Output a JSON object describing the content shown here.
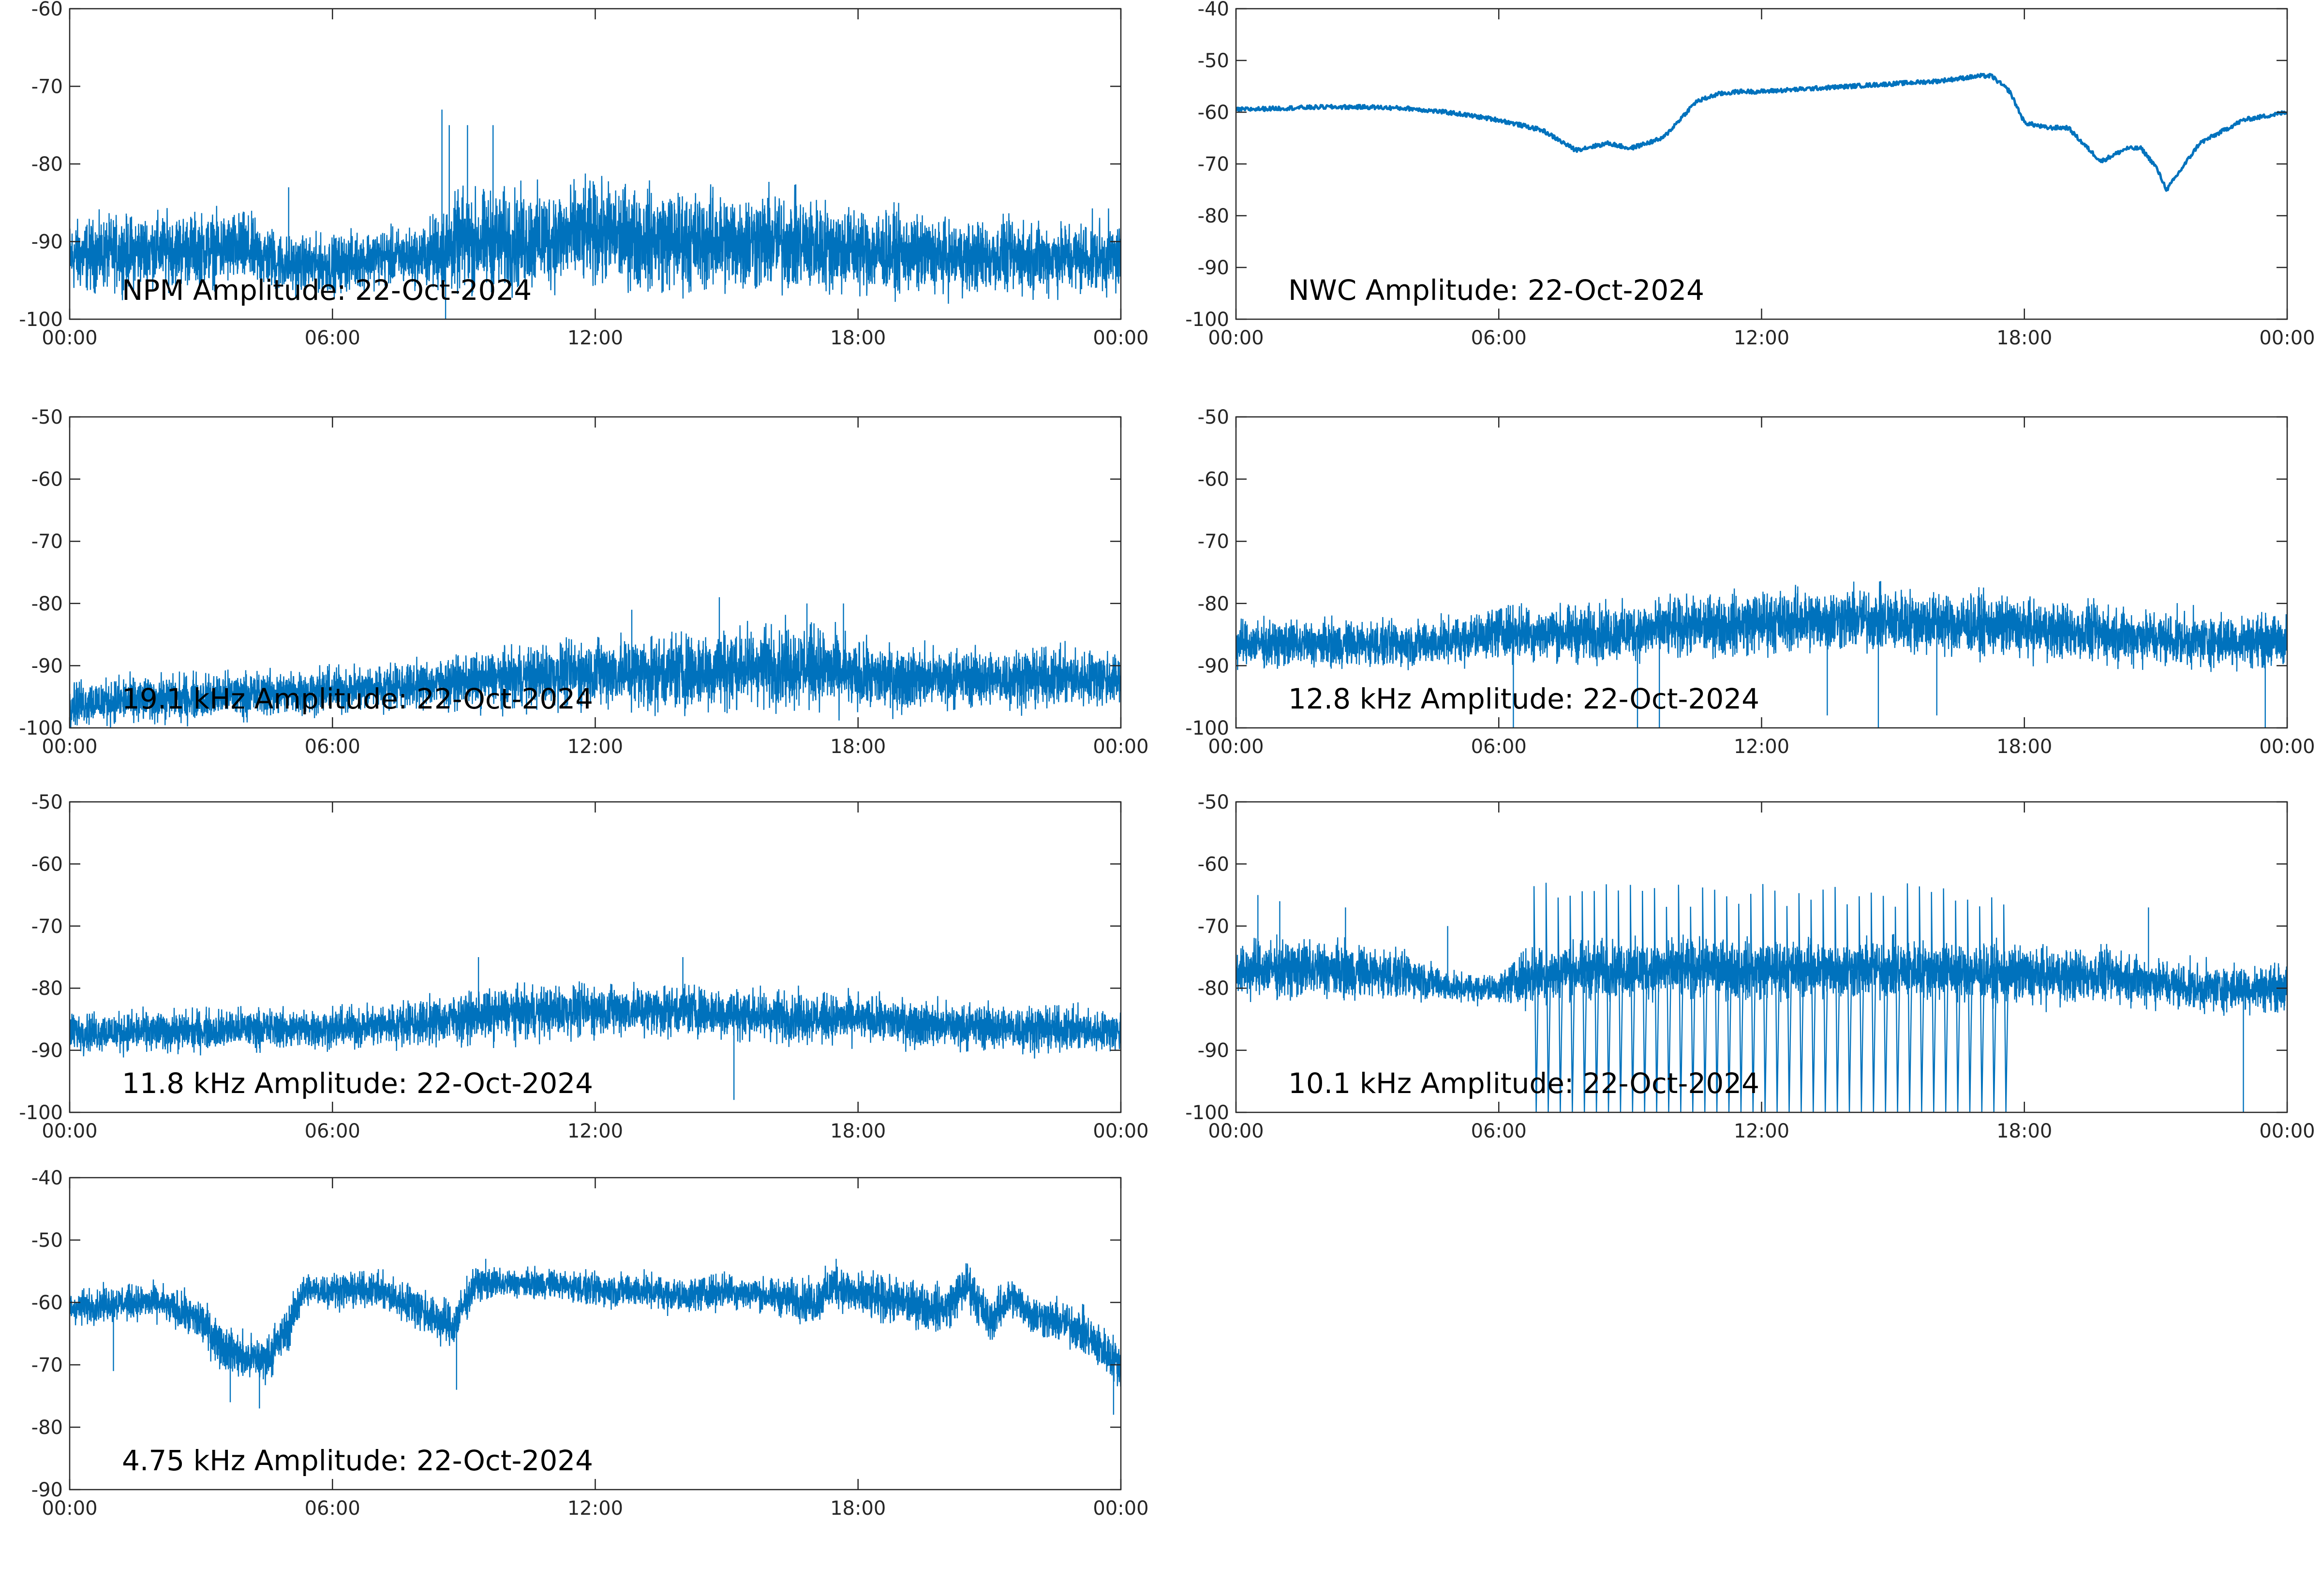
{
  "figure": {
    "line_color": "#0072BD",
    "frame_color": "#262626",
    "background": "#ffffff"
  },
  "chart_data": [
    {
      "type": "line",
      "title": "NPM Amplitude: 22-Oct-2024",
      "xlabel": "",
      "ylabel": "",
      "x_ticks": [
        "00:00",
        "06:00",
        "12:00",
        "18:00",
        "00:00"
      ],
      "y_ticks": [
        -60,
        -70,
        -80,
        -90,
        -100
      ],
      "ylim": [
        -100,
        -60
      ],
      "grid": false,
      "series": [
        {
          "profile": {
            "x": [
              "00:00",
              "02:00",
              "04:00",
              "05:00",
              "06:00",
              "07:00",
              "08:00",
              "08:30",
              "09:00",
              "10:00",
              "12:00",
              "14:00",
              "16:00",
              "18:00",
              "20:00",
              "22:00",
              "24:00"
            ],
            "center": [
              -92,
              -91,
              -91,
              -93,
              -93,
              -92,
              -92,
              -91,
              -90,
              -90,
              -89,
              -90,
              -90,
              -91,
              -92,
              -92,
              -92
            ],
            "spread": [
              5,
              5,
              5,
              4,
              4,
              4,
              4,
              6,
              7,
              7,
              7,
              7,
              7,
              6,
              5,
              5,
              5
            ]
          },
          "spikes": [
            {
              "x": "08:30",
              "y": -73
            },
            {
              "x": "08:40",
              "y": -75
            },
            {
              "x": "09:05",
              "y": -75
            },
            {
              "x": "09:40",
              "y": -75
            },
            {
              "x": "05:00",
              "y": -83
            },
            {
              "x": "08:35",
              "y": -100
            }
          ]
        }
      ]
    },
    {
      "type": "line",
      "title": "NWC Amplitude: 22-Oct-2024",
      "xlabel": "",
      "ylabel": "",
      "x_ticks": [
        "00:00",
        "06:00",
        "12:00",
        "18:00",
        "00:00"
      ],
      "y_ticks": [
        -40,
        -50,
        -60,
        -70,
        -80,
        -90,
        -100
      ],
      "ylim": [
        -100,
        -40
      ],
      "grid": false,
      "series": [
        {
          "profile": {
            "x": [
              "00:00",
              "02:00",
              "03:00",
              "04:00",
              "05:00",
              "06:00",
              "07:00",
              "07:45",
              "08:30",
              "09:00",
              "09:45",
              "10:30",
              "11:00",
              "11:30",
              "12:00",
              "13:00",
              "14:00",
              "15:00",
              "16:00",
              "17:00",
              "17:15",
              "17:40",
              "18:00",
              "18:30",
              "19:00",
              "19:20",
              "19:45",
              "20:20",
              "20:40",
              "21:00",
              "21:15",
              "22:00",
              "23:00",
              "24:00"
            ],
            "center": [
              -59.5,
              -59,
              -59,
              -59.3,
              -60.2,
              -61.5,
              -63.5,
              -67.3,
              -66,
              -67,
              -65,
              -58,
              -56.5,
              -56,
              -56,
              -55.5,
              -55,
              -54.5,
              -54,
              -53,
              -53,
              -56,
              -62,
              -63,
              -63,
              -66,
              -69.5,
              -67,
              -67,
              -70.5,
              -75,
              -66,
              -61.5,
              -60
            ]
          }
        }
      ]
    },
    {
      "type": "line",
      "title": "19.1 kHz Amplitude: 22-Oct-2024",
      "xlabel": "",
      "ylabel": "",
      "x_ticks": [
        "00:00",
        "06:00",
        "12:00",
        "18:00",
        "00:00"
      ],
      "y_ticks": [
        -50,
        -60,
        -70,
        -80,
        -90,
        -100
      ],
      "ylim": [
        -100,
        -50
      ],
      "grid": false,
      "series": [
        {
          "profile": {
            "x": [
              "00:00",
              "03:00",
              "06:00",
              "08:00",
              "10:00",
              "12:00",
              "14:00",
              "16:00",
              "17:00",
              "18:00",
              "20:00",
              "22:00",
              "24:00"
            ],
            "center": [
              -96,
              -95,
              -94,
              -93,
              -92,
              -91,
              -91,
              -90,
              -90,
              -92,
              -92,
              -92,
              -92
            ],
            "spread": [
              4,
              4,
              4,
              4,
              5,
              6,
              7,
              7,
              7,
              6,
              5,
              5,
              5
            ]
          },
          "spikes": [
            {
              "x": "12:50",
              "y": -81
            },
            {
              "x": "14:50",
              "y": -79
            },
            {
              "x": "16:50",
              "y": -80
            },
            {
              "x": "17:40",
              "y": -80
            }
          ]
        }
      ]
    },
    {
      "type": "line",
      "title": "12.8 kHz Amplitude: 22-Oct-2024",
      "xlabel": "",
      "ylabel": "",
      "x_ticks": [
        "00:00",
        "06:00",
        "12:00",
        "18:00",
        "00:00"
      ],
      "y_ticks": [
        -50,
        -60,
        -70,
        -80,
        -90,
        -100
      ],
      "ylim": [
        -100,
        -50
      ],
      "grid": false,
      "series": [
        {
          "profile": {
            "x": [
              "00:00",
              "02:00",
              "04:00",
              "05:00",
              "06:00",
              "08:00",
              "10:00",
              "12:00",
              "14:00",
              "16:00",
              "18:00",
              "20:00",
              "22:00",
              "24:00"
            ],
            "center": [
              -86.5,
              -86.5,
              -86.5,
              -86,
              -84.5,
              -85,
              -84,
              -83,
              -82.5,
              -83,
              -84,
              -85,
              -86,
              -86
            ],
            "spread": [
              4,
              4,
              4,
              4,
              4.5,
              5,
              5,
              5.5,
              5.5,
              5.5,
              5,
              5,
              4.5,
              4.5
            ]
          },
          "spikes": [
            {
              "x": "06:20",
              "y": -100
            },
            {
              "x": "09:10",
              "y": -100
            },
            {
              "x": "09:40",
              "y": -100
            },
            {
              "x": "13:30",
              "y": -98
            },
            {
              "x": "14:40",
              "y": -100
            },
            {
              "x": "16:00",
              "y": -98
            },
            {
              "x": "23:30",
              "y": -100
            }
          ]
        }
      ]
    },
    {
      "type": "line",
      "title": "11.8 kHz Amplitude: 22-Oct-2024",
      "xlabel": "",
      "ylabel": "",
      "x_ticks": [
        "00:00",
        "06:00",
        "12:00",
        "18:00",
        "00:00"
      ],
      "y_ticks": [
        -50,
        -60,
        -70,
        -80,
        -90,
        -100
      ],
      "ylim": [
        -100,
        -50
      ],
      "grid": false,
      "series": [
        {
          "profile": {
            "x": [
              "00:00",
              "02:00",
              "04:00",
              "06:00",
              "08:00",
              "10:00",
              "12:00",
              "14:00",
              "16:00",
              "18:00",
              "20:00",
              "22:00",
              "24:00"
            ],
            "center": [
              -87,
              -87,
              -86.5,
              -86.5,
              -85.5,
              -84,
              -83.5,
              -83.5,
              -84.5,
              -85,
              -86,
              -86.5,
              -87
            ],
            "spread": [
              3.5,
              3.5,
              3.5,
              3.5,
              4,
              4.5,
              4.5,
              4.5,
              4.5,
              4,
              4,
              4,
              3.5
            ]
          },
          "spikes": [
            {
              "x": "09:20",
              "y": -75
            },
            {
              "x": "14:00",
              "y": -75
            },
            {
              "x": "15:10",
              "y": -98
            }
          ]
        }
      ]
    },
    {
      "type": "line",
      "title": "10.1 kHz Amplitude: 22-Oct-2024",
      "xlabel": "",
      "ylabel": "",
      "x_ticks": [
        "00:00",
        "06:00",
        "12:00",
        "18:00",
        "00:00"
      ],
      "y_ticks": [
        -50,
        -60,
        -70,
        -80,
        -90,
        -100
      ],
      "ylim": [
        -100,
        -50
      ],
      "grid": false,
      "series": [
        {
          "profile": {
            "x": [
              "00:00",
              "02:00",
              "04:00",
              "05:00",
              "06:00",
              "06:40",
              "08:00",
              "10:00",
              "12:00",
              "14:00",
              "16:00",
              "18:00",
              "20:00",
              "22:00",
              "24:00"
            ],
            "center": [
              -77,
              -77,
              -78,
              -80,
              -80,
              -78,
              -77,
              -77,
              -77,
              -77,
              -77,
              -78,
              -78,
              -80,
              -80
            ],
            "spread": [
              5,
              5,
              4,
              2.5,
              2.5,
              5,
              5,
              5,
              5,
              5,
              5,
              5,
              4.5,
              4,
              4
            ]
          },
          "bursts": {
            "start": "06:40",
            "end": "17:40",
            "count": 40,
            "top": -65,
            "bottom": -100
          },
          "spikes": [
            {
              "x": "00:30",
              "y": -65
            },
            {
              "x": "01:00",
              "y": -66
            },
            {
              "x": "02:30",
              "y": -67
            },
            {
              "x": "04:50",
              "y": -70
            },
            {
              "x": "20:50",
              "y": -67
            },
            {
              "x": "23:00",
              "y": -100
            }
          ]
        }
      ]
    },
    {
      "type": "line",
      "title": "4.75 kHz Amplitude: 22-Oct-2024",
      "xlabel": "",
      "ylabel": "",
      "x_ticks": [
        "00:00",
        "06:00",
        "12:00",
        "18:00",
        "00:00"
      ],
      "y_ticks": [
        -40,
        -50,
        -60,
        -70,
        -80,
        -90
      ],
      "ylim": [
        -90,
        -40
      ],
      "grid": false,
      "series": [
        {
          "profile": {
            "x": [
              "00:00",
              "01:00",
              "02:00",
              "03:00",
              "03:30",
              "04:00",
              "04:30",
              "05:00",
              "05:20",
              "06:00",
              "07:00",
              "08:00",
              "08:45",
              "09:15",
              "10:00",
              "11:00",
              "12:00",
              "13:00",
              "14:00",
              "15:00",
              "16:00",
              "17:00",
              "17:30",
              "18:00",
              "19:00",
              "20:00",
              "20:30",
              "21:00",
              "21:30",
              "22:00",
              "23:00",
              "23:30",
              "24:00"
            ],
            "center": [
              -61,
              -60,
              -60,
              -63,
              -67,
              -69,
              -69,
              -64,
              -58,
              -58,
              -58,
              -61,
              -64,
              -57,
              -57,
              -57,
              -58,
              -58,
              -59,
              -58,
              -59,
              -60,
              -57,
              -59,
              -60,
              -61,
              -57,
              -63,
              -59,
              -62,
              -64,
              -67,
              -70
            ],
            "spread": [
              3,
              3,
              3,
              4,
              4,
              4,
              4,
              4,
              3,
              3,
              3,
              4,
              4,
              3,
              2.5,
              2.5,
              3,
              3,
              3,
              3,
              3,
              4,
              4,
              4,
              4,
              4,
              4,
              4,
              3.5,
              3.5,
              4,
              4,
              4
            ]
          },
          "spikes": [
            {
              "x": "01:00",
              "y": -71
            },
            {
              "x": "03:40",
              "y": -76
            },
            {
              "x": "04:20",
              "y": -77
            },
            {
              "x": "08:50",
              "y": -74
            },
            {
              "x": "09:30",
              "y": -53
            },
            {
              "x": "17:30",
              "y": -53
            },
            {
              "x": "20:30",
              "y": -54
            },
            {
              "x": "23:50",
              "y": -78
            }
          ]
        }
      ]
    }
  ]
}
